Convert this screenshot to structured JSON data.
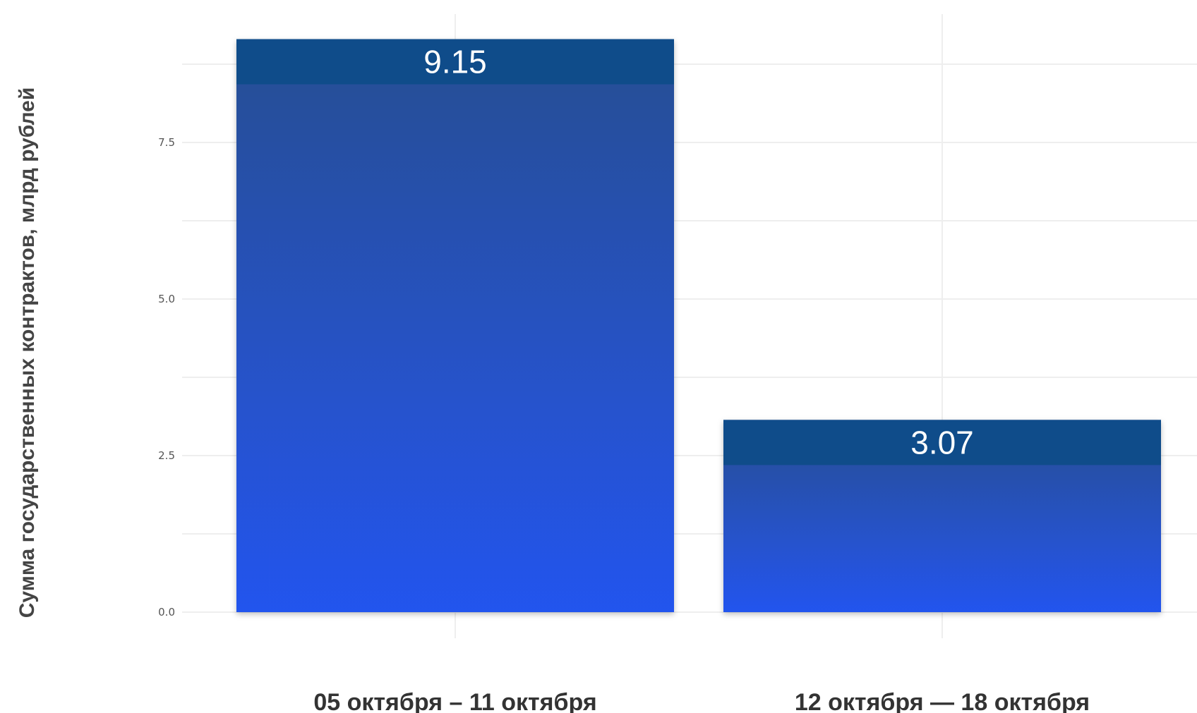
{
  "chart_data": {
    "type": "bar",
    "title": "",
    "xlabel": "",
    "ylabel": "Сумма государственных контрактов, млрд рублей",
    "categories": [
      "05 октября – 11 октября",
      "12 октября — 18 октября"
    ],
    "values": [
      9.15,
      3.07
    ],
    "value_labels": [
      "9.15",
      "3.07"
    ],
    "ylim": [
      0,
      9.5
    ],
    "y_ticks": [
      0.0,
      2.5,
      5.0,
      7.5
    ],
    "y_tick_labels": [
      "0.0",
      "2.5",
      "5.0",
      "7.5"
    ],
    "grid": true,
    "legend": "none",
    "colors": {
      "bar_top": "#0f4c8a",
      "bar_gradient_start": "#274f92",
      "bar_gradient_end": "#2454ee",
      "grid": "#eeeeee"
    }
  }
}
